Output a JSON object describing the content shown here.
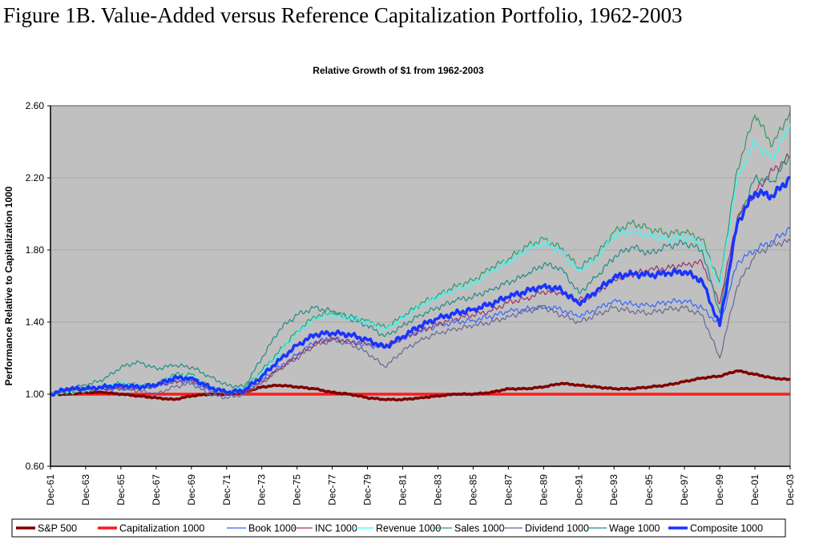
{
  "figure_title": "Figure 1B.  Value-Added versus Reference Capitalization Portfolio, 1962-2003",
  "chart_data": {
    "type": "line",
    "title": "Relative Growth of $1 from 1962-2003",
    "xlabel": "",
    "ylabel": "Performance Relative to Capitalization 1000",
    "ylim": [
      0.6,
      2.6
    ],
    "yticks": [
      "0.60",
      "1.00",
      "1.40",
      "1.80",
      "2.20",
      "2.60"
    ],
    "ytick_values": [
      0.6,
      1.0,
      1.4,
      1.8,
      2.2,
      2.6
    ],
    "grid": true,
    "xtick_labels": [
      "Dec-61",
      "Dec-63",
      "Dec-65",
      "Dec-67",
      "Dec-69",
      "Dec-71",
      "Dec-73",
      "Dec-75",
      "Dec-77",
      "Dec-79",
      "Dec-81",
      "Dec-83",
      "Dec-85",
      "Dec-87",
      "Dec-89",
      "Dec-91",
      "Dec-93",
      "Dec-95",
      "Dec-97",
      "Dec-99",
      "Dec-01",
      "Dec-03"
    ],
    "x": [
      1961,
      1962,
      1963,
      1964,
      1965,
      1966,
      1967,
      1968,
      1969,
      1970,
      1971,
      1972,
      1973,
      1974,
      1975,
      1976,
      1977,
      1978,
      1979,
      1980,
      1981,
      1982,
      1983,
      1984,
      1985,
      1986,
      1987,
      1988,
      1989,
      1990,
      1991,
      1992,
      1993,
      1994,
      1995,
      1996,
      1997,
      1998,
      1999,
      2000,
      2001,
      2002,
      2003
    ],
    "xlim": [
      1961,
      2003
    ],
    "legend_position": "bottom",
    "series": [
      {
        "name": "S&P 500",
        "color": "#800000",
        "width": 3.5,
        "values": [
          1.0,
          1.0,
          1.01,
          1.01,
          1.0,
          0.99,
          0.98,
          0.97,
          0.99,
          1.0,
          1.0,
          1.01,
          1.04,
          1.05,
          1.04,
          1.03,
          1.01,
          1.0,
          0.98,
          0.97,
          0.97,
          0.98,
          0.99,
          1.0,
          1.0,
          1.01,
          1.03,
          1.03,
          1.04,
          1.06,
          1.05,
          1.04,
          1.03,
          1.03,
          1.04,
          1.05,
          1.07,
          1.09,
          1.1,
          1.13,
          1.11,
          1.09,
          1.08
        ]
      },
      {
        "name": "Capitalization 1000",
        "color": "#ff1a1a",
        "width": 3.5,
        "values": [
          1.0,
          1.0,
          1.0,
          1.0,
          1.0,
          1.0,
          1.0,
          1.0,
          1.0,
          1.0,
          1.0,
          1.0,
          1.0,
          1.0,
          1.0,
          1.0,
          1.0,
          1.0,
          1.0,
          1.0,
          1.0,
          1.0,
          1.0,
          1.0,
          1.0,
          1.0,
          1.0,
          1.0,
          1.0,
          1.0,
          1.0,
          1.0,
          1.0,
          1.0,
          1.0,
          1.0,
          1.0,
          1.0,
          1.0,
          1.0,
          1.0,
          1.0,
          1.0
        ]
      },
      {
        "name": "Book 1000",
        "color": "#3366ff",
        "width": 1.2,
        "values": [
          1.0,
          1.02,
          1.03,
          1.03,
          1.03,
          1.03,
          1.04,
          1.07,
          1.07,
          1.02,
          1.0,
          1.01,
          1.08,
          1.15,
          1.22,
          1.29,
          1.31,
          1.29,
          1.27,
          1.26,
          1.31,
          1.35,
          1.38,
          1.4,
          1.41,
          1.43,
          1.46,
          1.47,
          1.49,
          1.47,
          1.43,
          1.47,
          1.52,
          1.5,
          1.49,
          1.51,
          1.52,
          1.48,
          1.38,
          1.73,
          1.8,
          1.85,
          1.92
        ]
      },
      {
        "name": "INC 1000",
        "color": "#993366",
        "width": 1.2,
        "values": [
          1.0,
          1.02,
          1.03,
          1.03,
          1.04,
          1.03,
          1.05,
          1.07,
          1.08,
          1.03,
          1.0,
          1.01,
          1.07,
          1.14,
          1.21,
          1.28,
          1.31,
          1.29,
          1.28,
          1.27,
          1.31,
          1.35,
          1.39,
          1.42,
          1.44,
          1.46,
          1.51,
          1.53,
          1.57,
          1.56,
          1.52,
          1.56,
          1.64,
          1.66,
          1.69,
          1.7,
          1.72,
          1.73,
          1.5,
          1.98,
          2.12,
          2.24,
          2.32
        ]
      },
      {
        "name": "Revenue 1000",
        "color": "#33ffff",
        "width": 1.2,
        "values": [
          1.0,
          1.01,
          1.02,
          1.04,
          1.06,
          1.05,
          1.05,
          1.1,
          1.1,
          1.04,
          1.01,
          1.03,
          1.12,
          1.23,
          1.34,
          1.42,
          1.44,
          1.42,
          1.4,
          1.36,
          1.42,
          1.49,
          1.54,
          1.58,
          1.61,
          1.68,
          1.73,
          1.8,
          1.84,
          1.79,
          1.68,
          1.75,
          1.88,
          1.9,
          1.88,
          1.86,
          1.87,
          1.83,
          1.6,
          2.2,
          2.4,
          2.3,
          2.5
        ]
      },
      {
        "name": "Sales 1000",
        "color": "#339966",
        "width": 1.2,
        "values": [
          1.0,
          1.01,
          1.02,
          1.04,
          1.06,
          1.05,
          1.05,
          1.11,
          1.11,
          1.04,
          1.01,
          1.03,
          1.13,
          1.24,
          1.35,
          1.43,
          1.45,
          1.43,
          1.41,
          1.37,
          1.43,
          1.5,
          1.55,
          1.6,
          1.63,
          1.7,
          1.75,
          1.82,
          1.86,
          1.81,
          1.7,
          1.77,
          1.9,
          1.95,
          1.92,
          1.89,
          1.9,
          1.86,
          1.62,
          2.25,
          2.55,
          2.38,
          2.57
        ]
      },
      {
        "name": "Dividend 1000",
        "color": "#666699",
        "width": 1.2,
        "values": [
          1.0,
          1.02,
          1.03,
          1.03,
          1.03,
          1.02,
          1.0,
          1.04,
          1.06,
          1.0,
          0.98,
          1.0,
          1.06,
          1.14,
          1.2,
          1.27,
          1.3,
          1.28,
          1.23,
          1.15,
          1.24,
          1.3,
          1.34,
          1.36,
          1.38,
          1.4,
          1.43,
          1.46,
          1.48,
          1.44,
          1.4,
          1.44,
          1.48,
          1.46,
          1.45,
          1.47,
          1.48,
          1.44,
          1.2,
          1.6,
          1.77,
          1.83,
          1.85
        ]
      },
      {
        "name": "Wage 1000",
        "color": "#1f8c84",
        "width": 1.2,
        "values": [
          1.0,
          1.03,
          1.05,
          1.08,
          1.15,
          1.18,
          1.14,
          1.16,
          1.15,
          1.1,
          1.05,
          1.04,
          1.2,
          1.36,
          1.44,
          1.48,
          1.46,
          1.42,
          1.38,
          1.32,
          1.38,
          1.44,
          1.48,
          1.52,
          1.54,
          1.58,
          1.62,
          1.66,
          1.72,
          1.7,
          1.56,
          1.65,
          1.76,
          1.82,
          1.78,
          1.82,
          1.84,
          1.8,
          1.45,
          1.95,
          2.2,
          2.18,
          2.32
        ]
      },
      {
        "name": "Composite 1000",
        "color": "#1a33ff",
        "width": 3.5,
        "values": [
          1.0,
          1.03,
          1.03,
          1.04,
          1.05,
          1.04,
          1.05,
          1.09,
          1.09,
          1.04,
          1.01,
          1.02,
          1.1,
          1.19,
          1.27,
          1.33,
          1.34,
          1.33,
          1.3,
          1.26,
          1.32,
          1.38,
          1.42,
          1.45,
          1.47,
          1.5,
          1.54,
          1.57,
          1.6,
          1.58,
          1.5,
          1.57,
          1.65,
          1.67,
          1.66,
          1.67,
          1.68,
          1.63,
          1.38,
          1.95,
          2.12,
          2.1,
          2.2
        ]
      }
    ]
  }
}
